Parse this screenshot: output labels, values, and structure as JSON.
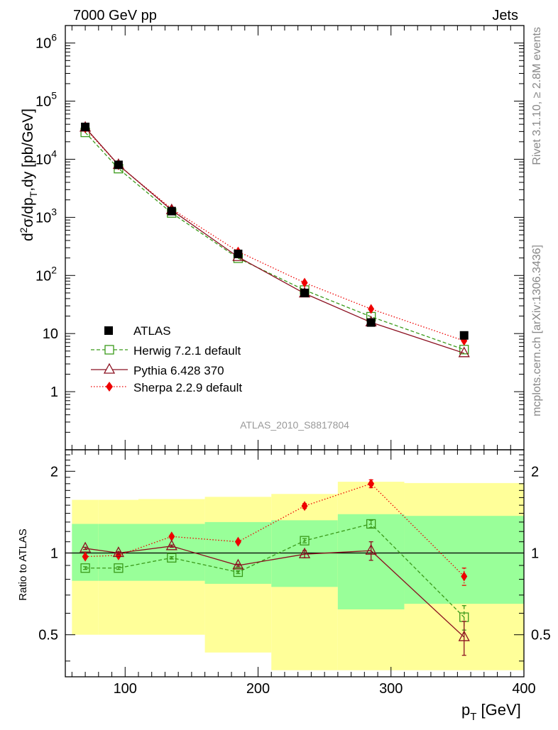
{
  "header": {
    "left_title": "7000 GeV pp",
    "right_title": "Jets"
  },
  "side_labels": {
    "rivet": "Rivet 3.1.10, ≥ 2.8M events",
    "mcplots": "mcplots.cern.ch [arXiv:1306.3436]"
  },
  "analysis_tag": "ATLAS_2010_S8817804",
  "axes": {
    "ylabel_main": "d²σ/dp_T,dy [pb/GeV]",
    "ylabel_main_parts": [
      "d",
      "2",
      "σ/dp",
      "T",
      ",dy [pb/GeV]"
    ],
    "ylabel_ratio": "Ratio to ATLAS",
    "xlabel_parts": [
      "p",
      "T",
      " [GeV]"
    ],
    "main_ytick_labels": [
      {
        "value": 1,
        "label": "1",
        "exp": null
      },
      {
        "value": 10,
        "label": "10",
        "exp": null
      },
      {
        "value": 100,
        "label": "10",
        "exp": "2"
      },
      {
        "value": 1000,
        "label": "10",
        "exp": "3"
      },
      {
        "value": 10000,
        "label": "10",
        "exp": "4"
      },
      {
        "value": 100000,
        "label": "10",
        "exp": "5"
      },
      {
        "value": 1000000,
        "label": "10",
        "exp": "6"
      }
    ],
    "ratio_ytick_labels": [
      {
        "value": 0.5,
        "label": "0.5"
      },
      {
        "value": 1,
        "label": "1"
      },
      {
        "value": 2,
        "label": "2"
      }
    ],
    "xtick_labels": [
      {
        "value": 100,
        "label": "100"
      },
      {
        "value": 200,
        "label": "200"
      },
      {
        "value": 300,
        "label": "300"
      },
      {
        "value": 400,
        "label": "400"
      }
    ]
  },
  "legend": [
    {
      "key": "atlas",
      "label": "ATLAS"
    },
    {
      "key": "herwig",
      "label": "Herwig 7.2.1 default"
    },
    {
      "key": "pythia",
      "label": "Pythia 6.428 370"
    },
    {
      "key": "sherpa",
      "label": "Sherpa 2.2.9 default"
    }
  ],
  "colors": {
    "atlas": "#000000",
    "herwig": "#3a9a1a",
    "pythia": "#8b1020",
    "sherpa": "#ee0000",
    "band_outer": "#ffff99",
    "band_inner": "#99ff99"
  },
  "chart_data": [
    {
      "type": "line",
      "title": "7000 GeV pp Jets",
      "xlabel": "p_T [GeV]",
      "ylabel": "d²σ/dp_T,dy [pb/GeV]",
      "yscale": "log",
      "xlim": [
        55,
        400
      ],
      "ylim": [
        0.1,
        2000000
      ],
      "x": [
        70,
        95,
        135,
        185,
        235,
        285,
        355
      ],
      "series": [
        {
          "name": "ATLAS",
          "values": [
            36000,
            8000,
            1280,
            235,
            50,
            15.5,
            9.3
          ]
        },
        {
          "name": "Herwig 7.2.1 default",
          "values": [
            29000,
            6900,
            1190,
            198,
            56,
            19.5,
            5.3
          ]
        },
        {
          "name": "Pythia 6.428 370",
          "values": [
            35000,
            8000,
            1330,
            208,
            49,
            15.6,
            4.6
          ]
        },
        {
          "name": "Sherpa 2.2.9 default",
          "values": [
            34000,
            7900,
            1400,
            258,
            75,
            26.5,
            7.5
          ]
        }
      ]
    },
    {
      "type": "line",
      "title": "Ratio to ATLAS",
      "xlabel": "p_T [GeV]",
      "ylabel": "Ratio to ATLAS",
      "yscale": "log",
      "xlim": [
        55,
        400
      ],
      "ylim": [
        0.35,
        2.4
      ],
      "x": [
        70,
        95,
        135,
        185,
        235,
        285,
        355
      ],
      "bins": [
        [
          60,
          80
        ],
        [
          80,
          110
        ],
        [
          110,
          160
        ],
        [
          160,
          210
        ],
        [
          210,
          260
        ],
        [
          260,
          310
        ],
        [
          310,
          400
        ]
      ],
      "band_outer": {
        "low": [
          0.5,
          0.5,
          0.5,
          0.43,
          0.37,
          0.37,
          0.37
        ],
        "high": [
          1.57,
          1.57,
          1.58,
          1.61,
          1.65,
          1.83,
          1.81
        ]
      },
      "band_inner": {
        "low": [
          0.79,
          0.79,
          0.79,
          0.77,
          0.75,
          0.62,
          0.65
        ],
        "high": [
          1.28,
          1.28,
          1.28,
          1.3,
          1.32,
          1.39,
          1.37
        ]
      },
      "series": [
        {
          "name": "Herwig 7.2.1 default",
          "values": [
            0.88,
            0.88,
            0.96,
            0.85,
            1.11,
            1.28,
            0.58
          ],
          "errors": [
            0.01,
            0.01,
            0.01,
            0.01,
            0.02,
            0.04,
            0.06
          ]
        },
        {
          "name": "Pythia 6.428 370",
          "values": [
            1.04,
            1.0,
            1.06,
            0.9,
            0.99,
            1.02,
            0.49
          ],
          "errors": [
            0.01,
            0.01,
            0.01,
            0.01,
            0.03,
            0.08,
            0.07
          ]
        },
        {
          "name": "Sherpa 2.2.9 default",
          "values": [
            0.97,
            0.98,
            1.15,
            1.1,
            1.49,
            1.8,
            0.82
          ],
          "errors": [
            0.01,
            0.01,
            0.01,
            0.01,
            0.03,
            0.06,
            0.06
          ]
        }
      ]
    }
  ]
}
